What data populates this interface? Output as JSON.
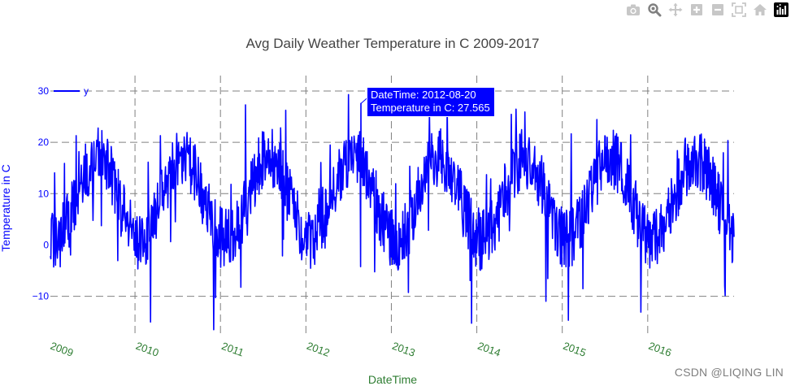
{
  "toolbar": {
    "buttons": [
      {
        "name": "camera-icon",
        "title": "Download plot as a png"
      },
      {
        "name": "zoom-icon",
        "title": "Zoom"
      },
      {
        "name": "pan-icon",
        "title": "Pan"
      },
      {
        "name": "zoom-in-icon",
        "title": "Zoom in"
      },
      {
        "name": "zoom-out-icon",
        "title": "Zoom out"
      },
      {
        "name": "autoscale-icon",
        "title": "Autoscale"
      },
      {
        "name": "home-icon",
        "title": "Reset axes"
      },
      {
        "name": "plotly-logo-icon",
        "title": "Produced with Plotly"
      }
    ],
    "icon_color": "#c7c7c7",
    "active_color": "#808080"
  },
  "chart_data": {
    "type": "line",
    "title": "Avg Daily Weather Temperature in C 2009-2017",
    "xlabel": "DateTime",
    "ylabel": "Temperature in C",
    "x_start": "2009-01-01",
    "x_end": "2016-12-31",
    "xlim": [
      2009.0,
      2017.0
    ],
    "ylim": [
      -17.5,
      33.0
    ],
    "y_ticks": [
      -10,
      0,
      10,
      20,
      30
    ],
    "x_tick_labels": [
      "2009",
      "2010",
      "2011",
      "2012",
      "2013",
      "2014",
      "2015",
      "2016"
    ],
    "legend": {
      "entries": [
        "y"
      ],
      "position": "top-left"
    },
    "series": [
      {
        "name": "y",
        "color": "#0000ff",
        "frequency": "daily",
        "seasonal_mean_c": 9,
        "seasonal_amplitude_c": 8,
        "daily_noise_c": 6,
        "min_c": -16.5,
        "max_c": 29.3
      }
    ],
    "hover": {
      "date": "2012-08-20",
      "value": 27.565,
      "line1": "DateTime: 2012-08-20",
      "line2": "Temperature in C: 27.565"
    },
    "grid": {
      "style": "dashed",
      "color": "#808080"
    },
    "colors": {
      "line": "#0000ff",
      "y_axis_text": "#0000ff",
      "x_axis_text": "#2e7d32",
      "title_text": "#444444"
    }
  },
  "watermark": "CSDN @LIQING LIN"
}
